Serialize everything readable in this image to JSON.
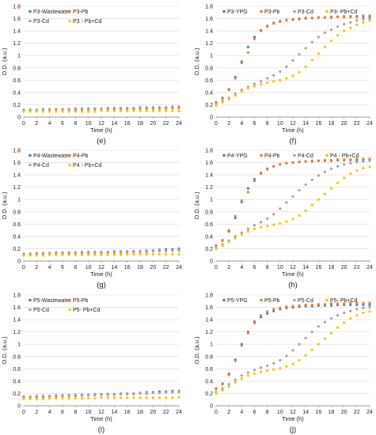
{
  "colors": {
    "s1": "#3a86c8",
    "s2": "#ed7d31",
    "s3": "#a5a5a5",
    "s4": "#ffc000",
    "axis": "#7f7f7f",
    "grid": "#d9d9d9",
    "text": "#222222"
  },
  "chart_data": [
    {
      "type": "scatter",
      "panel_label": "(e)",
      "xlabel": "Time (h)",
      "ylabel": "O.D. (a.u.)",
      "xlim": [
        0,
        24
      ],
      "ylim": [
        0,
        1.8
      ],
      "xticks": [
        0,
        2,
        4,
        6,
        8,
        10,
        12,
        14,
        16,
        18,
        20,
        22,
        24
      ],
      "yticks": [
        0,
        0.2,
        0.4,
        0.6,
        0.8,
        1,
        1.2,
        1.4,
        1.6,
        1.8
      ],
      "x": [
        0,
        1,
        2,
        3,
        4,
        5,
        6,
        7,
        8,
        9,
        10,
        11,
        12,
        13,
        14,
        15,
        16,
        17,
        18,
        19,
        20,
        21,
        22,
        23,
        24
      ],
      "series": [
        {
          "name": "P3-Wastewater",
          "values": [
            0.11,
            0.11,
            0.11,
            0.12,
            0.12,
            0.12,
            0.12,
            0.12,
            0.12,
            0.13,
            0.13,
            0.13,
            0.13,
            0.13,
            0.13,
            0.13,
            0.13,
            0.14,
            0.14,
            0.14,
            0.14,
            0.15,
            0.15,
            0.15,
            0.15
          ]
        },
        {
          "name": "P3-Pb",
          "values": [
            0.11,
            0.11,
            0.11,
            0.12,
            0.12,
            0.12,
            0.12,
            0.12,
            0.12,
            0.12,
            0.13,
            0.13,
            0.13,
            0.13,
            0.13,
            0.13,
            0.13,
            0.13,
            0.14,
            0.14,
            0.14,
            0.14,
            0.14,
            0.15,
            0.15
          ]
        },
        {
          "name": "P3-Cd",
          "values": [
            0.12,
            0.12,
            0.12,
            0.13,
            0.13,
            0.13,
            0.13,
            0.13,
            0.14,
            0.14,
            0.14,
            0.14,
            0.14,
            0.15,
            0.15,
            0.15,
            0.15,
            0.15,
            0.16,
            0.16,
            0.16,
            0.16,
            0.16,
            0.17,
            0.17
          ]
        },
        {
          "name": "P3 - Pb+Cd",
          "values": [
            0.09,
            0.09,
            0.09,
            0.09,
            0.09,
            0.09,
            0.09,
            0.09,
            0.09,
            0.09,
            0.09,
            0.09,
            0.1,
            0.1,
            0.1,
            0.1,
            0.1,
            0.1,
            0.1,
            0.1,
            0.1,
            0.1,
            0.1,
            0.1,
            0.1
          ]
        }
      ]
    },
    {
      "type": "scatter",
      "panel_label": "(f)",
      "xlabel": "Time (h)",
      "ylabel": "O.D. (a.u.)",
      "xlim": [
        0,
        24
      ],
      "ylim": [
        0,
        1.8
      ],
      "xticks": [
        0,
        2,
        4,
        6,
        8,
        10,
        12,
        14,
        16,
        18,
        20,
        22,
        24
      ],
      "yticks": [
        0,
        0.2,
        0.4,
        0.6,
        0.8,
        1,
        1.2,
        1.4,
        1.6,
        1.8
      ],
      "x": [
        0,
        1,
        2,
        3,
        4,
        5,
        6,
        7,
        8,
        9,
        10,
        11,
        12,
        13,
        14,
        15,
        16,
        17,
        18,
        19,
        20,
        21,
        22,
        23,
        24
      ],
      "series": [
        {
          "name": "P3-YPG",
          "values": [
            0.24,
            0.31,
            0.45,
            0.65,
            0.9,
            1.14,
            1.3,
            1.41,
            1.48,
            1.53,
            1.56,
            1.58,
            1.59,
            1.6,
            1.61,
            1.61,
            1.62,
            1.62,
            1.62,
            1.63,
            1.63,
            1.63,
            1.63,
            1.63,
            1.63
          ]
        },
        {
          "name": "P3-Pb",
          "values": [
            0.24,
            0.3,
            0.44,
            0.63,
            0.88,
            1.05,
            1.27,
            1.4,
            1.47,
            1.52,
            1.55,
            1.57,
            1.58,
            1.59,
            1.6,
            1.61,
            1.62,
            1.62,
            1.63,
            1.63,
            1.64,
            1.64,
            1.64,
            1.65,
            1.65
          ]
        },
        {
          "name": "P3-Cd",
          "values": [
            0.2,
            0.26,
            0.31,
            0.38,
            0.44,
            0.49,
            0.54,
            0.58,
            0.63,
            0.68,
            0.74,
            0.82,
            0.92,
            1.02,
            1.12,
            1.22,
            1.3,
            1.37,
            1.42,
            1.47,
            1.51,
            1.54,
            1.57,
            1.59,
            1.6
          ]
        },
        {
          "name": "P3- Pb+Cd",
          "values": [
            0.19,
            0.24,
            0.29,
            0.35,
            0.42,
            0.47,
            0.5,
            0.53,
            0.56,
            0.58,
            0.6,
            0.63,
            0.67,
            0.73,
            0.82,
            0.93,
            1.03,
            1.14,
            1.24,
            1.33,
            1.4,
            1.45,
            1.5,
            1.54,
            1.57
          ]
        }
      ]
    },
    {
      "type": "scatter",
      "panel_label": "(g)",
      "xlabel": "Time (h)",
      "ylabel": "O.D. (a.u.)",
      "xlim": [
        0,
        24
      ],
      "ylim": [
        0,
        1.8
      ],
      "xticks": [
        0,
        2,
        4,
        6,
        8,
        10,
        12,
        14,
        16,
        18,
        20,
        22,
        24
      ],
      "yticks": [
        0,
        0.2,
        0.4,
        0.6,
        0.8,
        1,
        1.2,
        1.4,
        1.6,
        1.8
      ],
      "x": [
        0,
        1,
        2,
        3,
        4,
        5,
        6,
        7,
        8,
        9,
        10,
        11,
        12,
        13,
        14,
        15,
        16,
        17,
        18,
        19,
        20,
        21,
        22,
        23,
        24
      ],
      "series": [
        {
          "name": "P4-Wastewater",
          "values": [
            0.1,
            0.11,
            0.11,
            0.12,
            0.12,
            0.12,
            0.13,
            0.13,
            0.13,
            0.13,
            0.14,
            0.14,
            0.14,
            0.14,
            0.15,
            0.15,
            0.15,
            0.16,
            0.16,
            0.17,
            0.17,
            0.18,
            0.19,
            0.19,
            0.2
          ]
        },
        {
          "name": "P4-Pb",
          "values": [
            0.1,
            0.11,
            0.11,
            0.11,
            0.12,
            0.12,
            0.12,
            0.12,
            0.13,
            0.13,
            0.13,
            0.13,
            0.13,
            0.14,
            0.14,
            0.14,
            0.14,
            0.15,
            0.15,
            0.15,
            0.16,
            0.16,
            0.16,
            0.17,
            0.17
          ]
        },
        {
          "name": "P4-Cd",
          "values": [
            0.12,
            0.12,
            0.13,
            0.13,
            0.13,
            0.14,
            0.14,
            0.14,
            0.14,
            0.15,
            0.15,
            0.15,
            0.15,
            0.15,
            0.16,
            0.16,
            0.16,
            0.16,
            0.16,
            0.17,
            0.17,
            0.17,
            0.17,
            0.18,
            0.18
          ]
        },
        {
          "name": "P4 - Pb+Cd",
          "values": [
            0.09,
            0.09,
            0.09,
            0.09,
            0.1,
            0.1,
            0.1,
            0.1,
            0.1,
            0.1,
            0.1,
            0.1,
            0.1,
            0.1,
            0.1,
            0.1,
            0.11,
            0.11,
            0.11,
            0.11,
            0.11,
            0.11,
            0.11,
            0.11,
            0.11
          ]
        }
      ]
    },
    {
      "type": "scatter",
      "panel_label": "(h)",
      "xlabel": "Time (h)",
      "ylabel": "O.D. (a.u.)",
      "xlim": [
        0,
        24
      ],
      "ylim": [
        0,
        1.8
      ],
      "xticks": [
        0,
        2,
        4,
        6,
        8,
        10,
        12,
        14,
        16,
        18,
        20,
        22,
        24
      ],
      "yticks": [
        0,
        0.2,
        0.4,
        0.6,
        0.8,
        1,
        1.2,
        1.4,
        1.6,
        1.8
      ],
      "x": [
        0,
        1,
        2,
        3,
        4,
        5,
        6,
        7,
        8,
        9,
        10,
        11,
        12,
        13,
        14,
        15,
        16,
        17,
        18,
        19,
        20,
        21,
        22,
        23,
        24
      ],
      "series": [
        {
          "name": "P4-YPG",
          "values": [
            0.25,
            0.33,
            0.48,
            0.7,
            0.96,
            1.18,
            1.33,
            1.43,
            1.5,
            1.54,
            1.57,
            1.59,
            1.6,
            1.61,
            1.62,
            1.62,
            1.63,
            1.63,
            1.63,
            1.64,
            1.64,
            1.64,
            1.64,
            1.64,
            1.64
          ]
        },
        {
          "name": "P4-Pb",
          "values": [
            0.25,
            0.34,
            0.5,
            0.73,
            0.98,
            1.12,
            1.3,
            1.42,
            1.49,
            1.54,
            1.57,
            1.59,
            1.6,
            1.61,
            1.62,
            1.63,
            1.63,
            1.64,
            1.64,
            1.65,
            1.65,
            1.65,
            1.66,
            1.66,
            1.66
          ]
        },
        {
          "name": "P4-Cd",
          "values": [
            0.22,
            0.27,
            0.33,
            0.4,
            0.46,
            0.52,
            0.58,
            0.63,
            0.69,
            0.76,
            0.85,
            0.95,
            1.05,
            1.15,
            1.24,
            1.32,
            1.39,
            1.45,
            1.5,
            1.54,
            1.57,
            1.59,
            1.61,
            1.62,
            1.63
          ]
        },
        {
          "name": "P4 - Pb+Cd",
          "values": [
            0.2,
            0.25,
            0.31,
            0.37,
            0.43,
            0.48,
            0.52,
            0.55,
            0.57,
            0.59,
            0.61,
            0.64,
            0.68,
            0.74,
            0.82,
            0.91,
            1.0,
            1.09,
            1.18,
            1.27,
            1.35,
            1.42,
            1.47,
            1.51,
            1.53
          ]
        }
      ]
    },
    {
      "type": "scatter",
      "panel_label": "(i)",
      "xlabel": "Time (h)",
      "ylabel": "O.D. (a.u.)",
      "xlim": [
        0,
        24
      ],
      "ylim": [
        0,
        1.8
      ],
      "xticks": [
        0,
        2,
        4,
        6,
        8,
        10,
        12,
        14,
        16,
        18,
        20,
        22,
        24
      ],
      "yticks": [
        0,
        0.2,
        0.4,
        0.6,
        0.8,
        1,
        1.2,
        1.4,
        1.6,
        1.8
      ],
      "x": [
        0,
        1,
        2,
        3,
        4,
        5,
        6,
        7,
        8,
        9,
        10,
        11,
        12,
        13,
        14,
        15,
        16,
        17,
        18,
        19,
        20,
        21,
        22,
        23,
        24
      ],
      "series": [
        {
          "name": "P5-Wastewater",
          "values": [
            0.13,
            0.14,
            0.14,
            0.15,
            0.15,
            0.16,
            0.16,
            0.17,
            0.17,
            0.17,
            0.18,
            0.18,
            0.18,
            0.19,
            0.19,
            0.19,
            0.2,
            0.2,
            0.21,
            0.22,
            0.22,
            0.23,
            0.23,
            0.24,
            0.24
          ]
        },
        {
          "name": "P5-Pb",
          "values": [
            0.13,
            0.13,
            0.14,
            0.14,
            0.15,
            0.15,
            0.16,
            0.16,
            0.16,
            0.17,
            0.17,
            0.17,
            0.18,
            0.18,
            0.18,
            0.19,
            0.19,
            0.19,
            0.2,
            0.2,
            0.21,
            0.21,
            0.22,
            0.22,
            0.23
          ]
        },
        {
          "name": "P5-Cd",
          "values": [
            0.15,
            0.15,
            0.16,
            0.16,
            0.16,
            0.17,
            0.17,
            0.17,
            0.18,
            0.18,
            0.18,
            0.19,
            0.19,
            0.19,
            0.19,
            0.2,
            0.2,
            0.2,
            0.21,
            0.21,
            0.21,
            0.21,
            0.22,
            0.22,
            0.22
          ]
        },
        {
          "name": "P5- Pb+Cd",
          "values": [
            0.11,
            0.11,
            0.11,
            0.11,
            0.12,
            0.12,
            0.12,
            0.12,
            0.12,
            0.12,
            0.12,
            0.12,
            0.13,
            0.13,
            0.13,
            0.13,
            0.13,
            0.13,
            0.13,
            0.13,
            0.13,
            0.13,
            0.13,
            0.13,
            0.14
          ]
        }
      ]
    },
    {
      "type": "scatter",
      "panel_label": "(j)",
      "xlabel": "Time (h)",
      "ylabel": "O.D. (a.u.)",
      "xlim": [
        0,
        24
      ],
      "ylim": [
        0,
        1.8
      ],
      "xticks": [
        0,
        2,
        4,
        6,
        8,
        10,
        12,
        14,
        16,
        18,
        20,
        22,
        24
      ],
      "yticks": [
        0,
        0.2,
        0.4,
        0.6,
        0.8,
        1,
        1.2,
        1.4,
        1.6,
        1.8
      ],
      "x": [
        0,
        1,
        2,
        3,
        4,
        5,
        6,
        7,
        8,
        9,
        10,
        11,
        12,
        13,
        14,
        15,
        16,
        17,
        18,
        19,
        20,
        21,
        22,
        23,
        24
      ],
      "series": [
        {
          "name": "P5-YPG",
          "values": [
            0.28,
            0.36,
            0.52,
            0.75,
            1.0,
            1.2,
            1.35,
            1.44,
            1.5,
            1.54,
            1.57,
            1.59,
            1.6,
            1.61,
            1.62,
            1.62,
            1.63,
            1.63,
            1.63,
            1.64,
            1.64,
            1.64,
            1.64,
            1.64,
            1.64
          ]
        },
        {
          "name": "P5-Pb",
          "values": [
            0.27,
            0.35,
            0.5,
            0.73,
            0.98,
            1.18,
            1.37,
            1.47,
            1.53,
            1.57,
            1.59,
            1.61,
            1.62,
            1.63,
            1.64,
            1.64,
            1.65,
            1.65,
            1.66,
            1.66,
            1.66,
            1.67,
            1.67,
            1.67,
            1.67
          ]
        },
        {
          "name": "P5-Cd",
          "values": [
            0.22,
            0.28,
            0.35,
            0.42,
            0.49,
            0.54,
            0.58,
            0.62,
            0.65,
            0.69,
            0.74,
            0.81,
            0.9,
            1.0,
            1.1,
            1.2,
            1.29,
            1.36,
            1.42,
            1.47,
            1.51,
            1.54,
            1.57,
            1.59,
            1.6
          ]
        },
        {
          "name": "P5- Pb+Cd",
          "values": [
            0.2,
            0.25,
            0.31,
            0.38,
            0.44,
            0.49,
            0.52,
            0.55,
            0.57,
            0.59,
            0.61,
            0.64,
            0.68,
            0.74,
            0.82,
            0.91,
            1.0,
            1.09,
            1.18,
            1.27,
            1.35,
            1.42,
            1.47,
            1.51,
            1.53
          ]
        }
      ]
    }
  ]
}
